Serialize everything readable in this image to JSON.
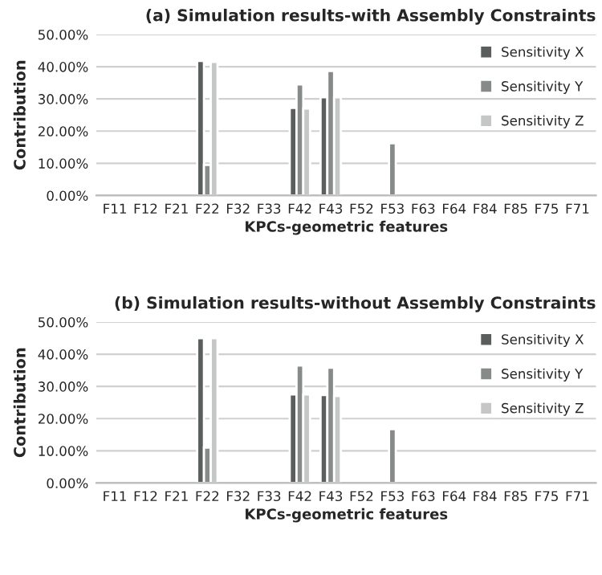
{
  "chart_data": [
    {
      "type": "bar",
      "title": "(a) Simulation results-with Assembly Constraints",
      "xlabel": "KPCs-geometric features",
      "ylabel": "Contribution",
      "categories": [
        "F11",
        "F12",
        "F21",
        "F22",
        "F32",
        "F33",
        "F42",
        "F43",
        "F52",
        "F53",
        "F63",
        "F64",
        "F84",
        "F85",
        "F75",
        "F71"
      ],
      "series": [
        {
          "name": "Sensitivity X",
          "color": "#5a5e5c",
          "values": [
            null,
            null,
            null,
            41.8,
            null,
            null,
            27.2,
            30.5,
            null,
            null,
            null,
            null,
            null,
            null,
            null,
            null
          ]
        },
        {
          "name": "Sensitivity Y",
          "color": "#868a88",
          "values": [
            null,
            null,
            null,
            9.5,
            null,
            null,
            34.5,
            38.7,
            null,
            16.2,
            null,
            null,
            null,
            null,
            null,
            null
          ]
        },
        {
          "name": "Sensitivity Z",
          "color": "#c4c7c5",
          "values": [
            null,
            null,
            null,
            41.5,
            null,
            null,
            27.0,
            30.5,
            null,
            null,
            null,
            null,
            null,
            null,
            null,
            null
          ]
        }
      ],
      "ylim": [
        0,
        50
      ],
      "yticks": [
        {
          "value": 0,
          "label": "0.00%"
        },
        {
          "value": 10,
          "label": "10.00%"
        },
        {
          "value": 20,
          "label": "20.00%"
        },
        {
          "value": 30,
          "label": "30.00%"
        },
        {
          "value": 40,
          "label": "40.00%"
        },
        {
          "value": 50,
          "label": "50.00%"
        }
      ],
      "grid": "y",
      "legend": "top right"
    },
    {
      "type": "bar",
      "title": "(b) Simulation results-without Assembly Constraints",
      "xlabel": "KPCs-geometric features",
      "ylabel": "Contribution",
      "categories": [
        "F11",
        "F12",
        "F21",
        "F22",
        "F32",
        "F33",
        "F42",
        "F43",
        "F52",
        "F53",
        "F63",
        "F64",
        "F84",
        "F85",
        "F75",
        "F71"
      ],
      "series": [
        {
          "name": "Sensitivity X",
          "color": "#5a5e5c",
          "values": [
            null,
            null,
            null,
            45.0,
            null,
            null,
            27.5,
            27.3,
            null,
            null,
            null,
            null,
            null,
            null,
            null,
            null
          ]
        },
        {
          "name": "Sensitivity Y",
          "color": "#868a88",
          "values": [
            null,
            null,
            null,
            11.0,
            null,
            null,
            36.5,
            35.8,
            null,
            16.7,
            null,
            null,
            null,
            null,
            null,
            null
          ]
        },
        {
          "name": "Sensitivity Z",
          "color": "#c4c7c5",
          "values": [
            null,
            null,
            null,
            45.0,
            null,
            null,
            27.5,
            27.0,
            null,
            null,
            null,
            null,
            null,
            null,
            null,
            null
          ]
        }
      ],
      "ylim": [
        0,
        50
      ],
      "yticks": [
        {
          "value": 0,
          "label": "0.00%"
        },
        {
          "value": 10,
          "label": "10.00%"
        },
        {
          "value": 20,
          "label": "20.00%"
        },
        {
          "value": 30,
          "label": "30.00%"
        },
        {
          "value": 40,
          "label": "40.00%"
        },
        {
          "value": 50,
          "label": "50.00%"
        }
      ],
      "grid": "y",
      "legend": "top right"
    }
  ]
}
